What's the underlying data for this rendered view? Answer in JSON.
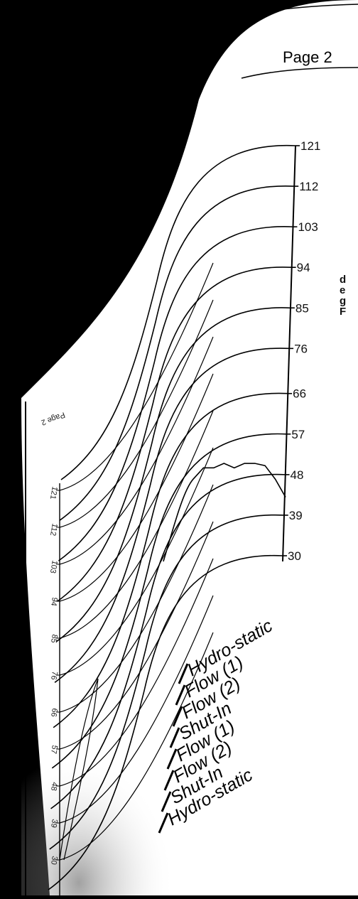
{
  "page": {
    "label": "Page 2"
  },
  "chart_data": {
    "type": "line",
    "title": "",
    "ylabel": "degF",
    "unit_chars": [
      "d",
      "e",
      "g",
      "F"
    ],
    "ylim": [
      30,
      121
    ],
    "y_ticks": [
      121,
      112,
      103,
      94,
      85,
      76,
      66,
      57,
      48,
      39,
      30
    ],
    "legend": [
      "Hydro-static",
      "Flow (1)",
      "Flow (2)",
      "Shut-In",
      "Flow (1)",
      "Flow (2)",
      "Shut-In",
      "Hydro-static"
    ],
    "series": [
      {
        "values_note_free": true,
        "values": [
          47,
          49.5,
          49.5,
          50.5,
          49.5,
          50.5,
          50.5,
          50,
          47,
          43
        ]
      }
    ]
  },
  "mirror": {
    "page_label": "Page 2",
    "ticks": [
      121,
      112,
      103,
      94,
      85,
      76,
      66,
      57,
      48,
      39,
      30
    ]
  }
}
